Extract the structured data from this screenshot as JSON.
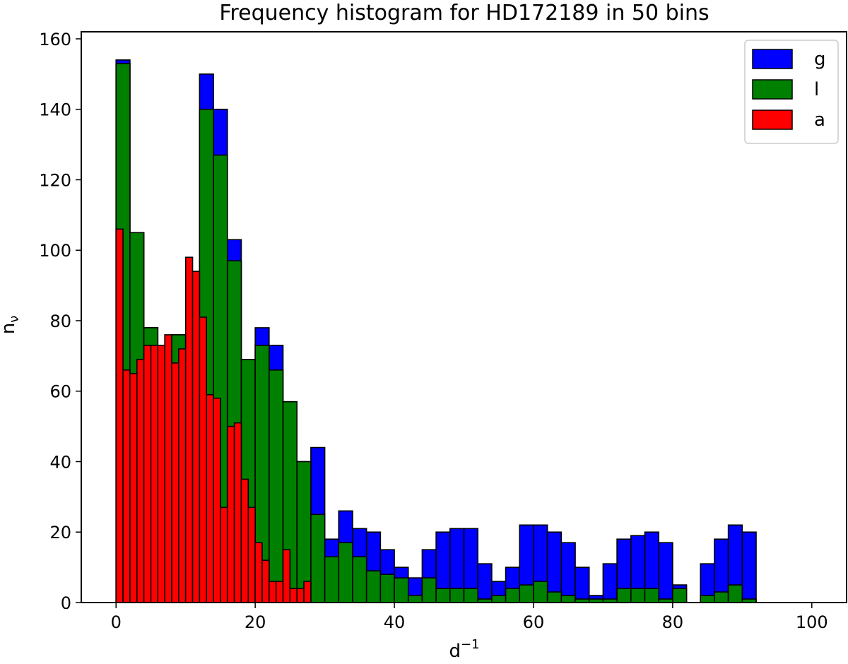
{
  "chart_data": {
    "type": "bar",
    "title": "Frequency histogram for HD172189 in 50 bins",
    "xlabel": "d",
    "xlabel_sup": "−1",
    "ylabel": "n",
    "ylabel_sub": "ν",
    "xlim": [
      -5,
      105
    ],
    "ylim": [
      0,
      162
    ],
    "bin_width": 2.0,
    "x_start": 0.0,
    "a_bin_width": 1.0,
    "xticks": [
      "0",
      "20",
      "40",
      "60",
      "80",
      "100"
    ],
    "xtick_values": [
      0,
      20,
      40,
      60,
      80,
      100
    ],
    "yticks": [
      "0",
      "20",
      "40",
      "60",
      "80",
      "100",
      "120",
      "140",
      "160"
    ],
    "ytick_values": [
      0,
      20,
      40,
      60,
      80,
      100,
      120,
      140,
      160
    ],
    "legend_position": "top-right",
    "series": [
      {
        "name": "g",
        "color": "#0000ff",
        "values": [
          154,
          105,
          78,
          73,
          76,
          72,
          150,
          140,
          103,
          69,
          78,
          73,
          57,
          40,
          44,
          18,
          26,
          21,
          20,
          15,
          10,
          7,
          15,
          20,
          21,
          21,
          11,
          6,
          10,
          22,
          22,
          20,
          17,
          10,
          2,
          11,
          18,
          19,
          20,
          17,
          5,
          0,
          11,
          18,
          22,
          20,
          0,
          0,
          0,
          0
        ]
      },
      {
        "name": "l",
        "color": "#008000",
        "values": [
          153,
          105,
          78,
          73,
          76,
          72,
          140,
          127,
          97,
          69,
          73,
          66,
          57,
          40,
          25,
          13,
          17,
          13,
          9,
          8,
          7,
          2,
          7,
          4,
          4,
          4,
          1,
          2,
          4,
          5,
          6,
          3,
          2,
          1,
          1,
          1,
          4,
          4,
          4,
          1,
          4,
          0,
          2,
          3,
          5,
          1,
          0,
          0,
          0,
          0
        ]
      },
      {
        "name": "a",
        "color": "#ff0000",
        "values": [
          106,
          66,
          65,
          69,
          73,
          73,
          73,
          76,
          68,
          72,
          98,
          94,
          81,
          59,
          58,
          27,
          50,
          51,
          35,
          27,
          17,
          12,
          6,
          6,
          15,
          4,
          4,
          6,
          0,
          0,
          0,
          0,
          0,
          0,
          0,
          0,
          0,
          0,
          0,
          0,
          0,
          0,
          0,
          0,
          0,
          0,
          0,
          0,
          0,
          0,
          0,
          0,
          0,
          0,
          0,
          0,
          0,
          0,
          0,
          0,
          0,
          0,
          0,
          0,
          0,
          0,
          0,
          0,
          0,
          0,
          0,
          0,
          0,
          0,
          0,
          0,
          0,
          0,
          0,
          0,
          0,
          0,
          0,
          0,
          0,
          0,
          0,
          0,
          0,
          0,
          0,
          0,
          0,
          0,
          0,
          0,
          0,
          0,
          0,
          0
        ]
      }
    ]
  }
}
